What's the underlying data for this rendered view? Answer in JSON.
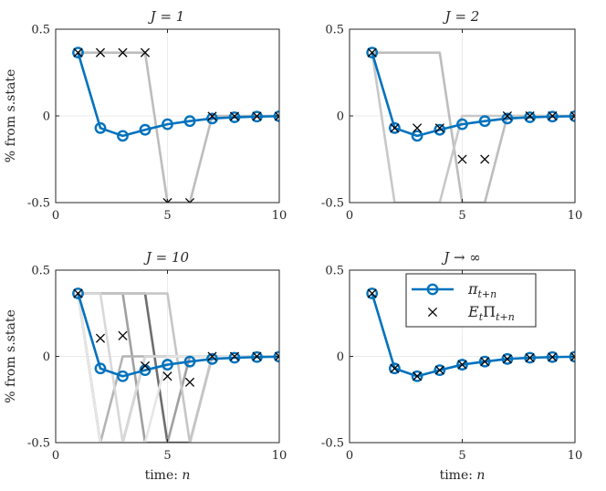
{
  "chart_data": [
    {
      "type": "line",
      "title": "J = 1",
      "ylabel": "% from s.state",
      "xlabel": "",
      "xlim": [
        0,
        10
      ],
      "ylim": [
        -0.5,
        0.5
      ],
      "xticks": [
        "0",
        "5",
        "10"
      ],
      "yticks": [
        "0.5",
        "0",
        "-0.5"
      ],
      "grid": true,
      "x": [
        1,
        2,
        3,
        4,
        5,
        6,
        7,
        8,
        9,
        10
      ],
      "series": [
        {
          "role": "pi",
          "values": [
            0.365,
            -0.07,
            -0.115,
            -0.08,
            -0.048,
            -0.03,
            -0.015,
            -0.008,
            -0.004,
            -0.002
          ]
        },
        {
          "role": "expectation",
          "values": [
            0.365,
            0.365,
            0.365,
            0.365,
            -0.5,
            -0.5,
            -0.002,
            -0.002,
            -0.002,
            -0.002
          ]
        }
      ],
      "background_paths": [
        {
          "shade": "#bdbdbd",
          "values": [
            0.365,
            0.365,
            0.365,
            0.365,
            -0.5,
            -0.5,
            0,
            0,
            0,
            0
          ]
        }
      ]
    },
    {
      "type": "line",
      "title": "J = 2",
      "ylabel": "",
      "xlabel": "",
      "xlim": [
        0,
        10
      ],
      "ylim": [
        -0.5,
        0.5
      ],
      "xticks": [
        "0",
        "5",
        "10"
      ],
      "yticks": [
        "0.5",
        "0",
        "-0.5"
      ],
      "grid": true,
      "x": [
        1,
        2,
        3,
        4,
        5,
        6,
        7,
        8,
        9,
        10
      ],
      "series": [
        {
          "role": "pi",
          "values": [
            0.365,
            -0.07,
            -0.115,
            -0.08,
            -0.048,
            -0.03,
            -0.015,
            -0.008,
            -0.004,
            -0.002
          ]
        },
        {
          "role": "expectation",
          "values": [
            0.365,
            -0.07,
            -0.07,
            -0.07,
            -0.25,
            -0.25,
            0,
            0,
            0,
            0
          ]
        }
      ],
      "background_paths": [
        {
          "shade": "#bdbdbd",
          "values": [
            0.365,
            0.365,
            0.365,
            0.365,
            -0.5,
            -0.5,
            0,
            0,
            0,
            0
          ]
        },
        {
          "shade": "#c8c8c8",
          "values": [
            0.365,
            -0.5,
            -0.5,
            -0.5,
            0,
            0,
            0,
            0,
            0,
            0
          ]
        }
      ]
    },
    {
      "type": "line",
      "title": "J = 10",
      "ylabel": "% from s.state",
      "xlabel": "time: n",
      "xlim": [
        0,
        10
      ],
      "ylim": [
        -0.5,
        0.5
      ],
      "xticks": [
        "0",
        "5",
        "10"
      ],
      "yticks": [
        "0.5",
        "0",
        "-0.5"
      ],
      "grid": true,
      "x": [
        1,
        2,
        3,
        4,
        5,
        6,
        7,
        8,
        9,
        10
      ],
      "series": [
        {
          "role": "pi",
          "values": [
            0.365,
            -0.07,
            -0.115,
            -0.08,
            -0.048,
            -0.03,
            -0.015,
            -0.008,
            -0.004,
            -0.002
          ]
        },
        {
          "role": "expectation",
          "values": [
            0.365,
            0.105,
            0.12,
            -0.055,
            -0.115,
            -0.15,
            0,
            0,
            0,
            0
          ]
        }
      ],
      "background_paths": [
        {
          "shade": "#6e6e6e",
          "values": [
            0.365,
            0.365,
            0.365,
            0.365,
            -0.5,
            -0.5,
            0,
            0,
            0,
            0
          ]
        },
        {
          "shade": "#8a8a8a",
          "values": [
            0.365,
            -0.5,
            -0.5,
            0,
            0,
            0,
            0,
            0,
            0,
            0
          ]
        },
        {
          "shade": "#a0a0a0",
          "values": [
            0.365,
            0.365,
            0.365,
            -0.5,
            -0.5,
            0,
            0,
            0,
            0,
            0
          ]
        },
        {
          "shade": "#b4b4b4",
          "values": [
            0.365,
            -0.5,
            0,
            0,
            0,
            0,
            0,
            0,
            0,
            0
          ]
        },
        {
          "shade": "#c6c6c6",
          "values": [
            0.365,
            0.365,
            0.365,
            0.365,
            0.365,
            -0.5,
            0,
            0,
            0,
            0
          ]
        },
        {
          "shade": "#d8d8d8",
          "values": [
            0.365,
            0.365,
            -0.5,
            0,
            0,
            0,
            0,
            0,
            0,
            0
          ]
        },
        {
          "shade": "#e6e6e6",
          "values": [
            0.365,
            -0.5,
            -0.5,
            -0.5,
            0,
            0,
            0,
            0,
            0,
            0
          ]
        }
      ]
    },
    {
      "type": "line",
      "title": "J → ∞",
      "ylabel": "",
      "xlabel": "time: n",
      "xlim": [
        0,
        10
      ],
      "ylim": [
        -0.5,
        0.5
      ],
      "xticks": [
        "0",
        "5",
        "10"
      ],
      "yticks": [
        "0.5",
        "0",
        "-0.5"
      ],
      "grid": true,
      "x": [
        1,
        2,
        3,
        4,
        5,
        6,
        7,
        8,
        9,
        10
      ],
      "series": [
        {
          "role": "pi",
          "values": [
            0.365,
            -0.07,
            -0.115,
            -0.08,
            -0.048,
            -0.03,
            -0.015,
            -0.008,
            -0.004,
            -0.002
          ]
        },
        {
          "role": "expectation",
          "values": [
            0.365,
            -0.07,
            -0.115,
            -0.08,
            -0.048,
            -0.03,
            -0.015,
            -0.008,
            -0.004,
            -0.002
          ]
        }
      ],
      "background_paths": [],
      "legend": {
        "placement": "top-right",
        "entries": [
          {
            "role": "pi",
            "label_main": "π",
            "label_sub": "t+n"
          },
          {
            "role": "expectation",
            "label_main": "E",
            "label_sub_t": "t",
            "label_mid": "Π",
            "label_sub": "t+n"
          }
        ]
      }
    }
  ],
  "colors": {
    "pi_line": "#0072bd",
    "marker_x": "#000000",
    "grid": "#ebebeb",
    "axis": "#262626"
  }
}
